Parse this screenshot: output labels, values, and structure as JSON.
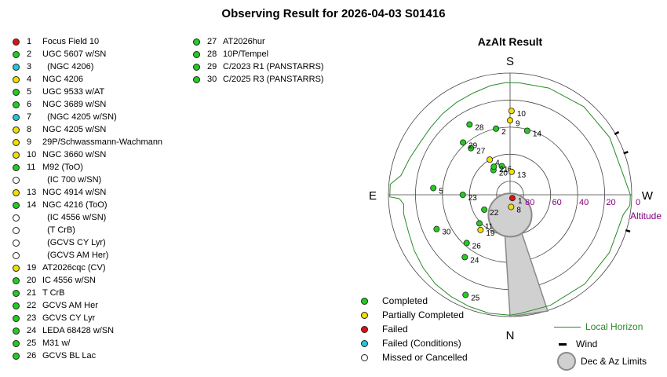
{
  "title": "Observing Result for 2026-04-03 S01416",
  "colors": {
    "completed": "#22cc22",
    "partial": "#f0e000",
    "failed": "#dd1111",
    "failed_conditions": "#22c8d8",
    "missed": "#ffffff",
    "horizon": "#2a8a2a",
    "altitude_label": "#800080"
  },
  "targets": [
    {
      "num": "1",
      "name": "Focus Field 10",
      "status": "failed"
    },
    {
      "num": "2",
      "name": "UGC 5607 w/SN",
      "status": "completed"
    },
    {
      "num": "3",
      "name": "  (NGC 4206)",
      "status": "failed_conditions"
    },
    {
      "num": "4",
      "name": "NGC 4206",
      "status": "partial"
    },
    {
      "num": "5",
      "name": "UGC 9533 w/AT",
      "status": "completed"
    },
    {
      "num": "6",
      "name": "NGC 3689 w/SN",
      "status": "completed"
    },
    {
      "num": "7",
      "name": "  (NGC 4205 w/SN)",
      "status": "failed_conditions"
    },
    {
      "num": "8",
      "name": "NGC 4205 w/SN",
      "status": "partial"
    },
    {
      "num": "9",
      "name": "29P/Schwassmann-Wachmann",
      "status": "partial"
    },
    {
      "num": "10",
      "name": "NGC 3660 w/SN",
      "status": "partial"
    },
    {
      "num": "11",
      "name": "M92 (ToO)",
      "status": "completed"
    },
    {
      "num": "",
      "name": "  (IC 700 w/SN)",
      "status": "missed"
    },
    {
      "num": "13",
      "name": "NGC 4914 w/SN",
      "status": "partial"
    },
    {
      "num": "14",
      "name": "NGC 4216 (ToO)",
      "status": "completed"
    },
    {
      "num": "",
      "name": "  (IC 4556 w/SN)",
      "status": "missed"
    },
    {
      "num": "",
      "name": "  (T CrB)",
      "status": "missed"
    },
    {
      "num": "",
      "name": "  (GCVS CY Lyr)",
      "status": "missed"
    },
    {
      "num": "",
      "name": "  (GCVS AM Her)",
      "status": "missed"
    },
    {
      "num": "19",
      "name": "AT2026cqc (CV)",
      "status": "partial"
    },
    {
      "num": "20",
      "name": "IC 4556 w/SN",
      "status": "completed"
    },
    {
      "num": "21",
      "name": "T CrB",
      "status": "completed"
    },
    {
      "num": "22",
      "name": "GCVS AM Her",
      "status": "completed"
    },
    {
      "num": "23",
      "name": "GCVS CY Lyr",
      "status": "completed"
    },
    {
      "num": "24",
      "name": "LEDA 68428 w/SN",
      "status": "completed"
    },
    {
      "num": "25",
      "name": "M31 w/",
      "status": "completed"
    },
    {
      "num": "26",
      "name": "GCVS BL Lac",
      "status": "completed"
    },
    {
      "num": "27",
      "name": "AT2026hur",
      "status": "completed"
    },
    {
      "num": "28",
      "name": "10P/Tempel",
      "status": "completed"
    },
    {
      "num": "29",
      "name": "C/2023 R1 (PANSTARRS)",
      "status": "completed"
    },
    {
      "num": "30",
      "name": "C/2025 R3 (PANSTARRS)",
      "status": "completed"
    }
  ],
  "plot": {
    "title": "AzAlt Result",
    "compass": {
      "N": "N",
      "S": "S",
      "E": "E",
      "W": "W"
    },
    "altitude_ticks": [
      "80",
      "60",
      "40",
      "20",
      "0"
    ],
    "altitude_label": "Altitude",
    "points": [
      {
        "label": "1",
        "status": "failed",
        "az": 325,
        "alt": 87
      },
      {
        "label": "2",
        "status": "completed",
        "az": 168,
        "alt": 40
      },
      {
        "label": "4",
        "status": "partial",
        "az": 150,
        "alt": 60
      },
      {
        "label": "5",
        "status": "completed",
        "az": 95,
        "alt": 33
      },
      {
        "label": "6",
        "status": "completed",
        "az": 164,
        "alt": 68
      },
      {
        "label": "8",
        "status": "partial",
        "az": 355,
        "alt": 81
      },
      {
        "label": "9",
        "status": "partial",
        "az": 180,
        "alt": 35
      },
      {
        "label": "10",
        "status": "partial",
        "az": 181,
        "alt": 28
      },
      {
        "label": "11",
        "status": "completed",
        "az": 47,
        "alt": 59
      },
      {
        "label": "13",
        "status": "partial",
        "az": 184,
        "alt": 73
      },
      {
        "label": "14",
        "status": "completed",
        "az": 195,
        "alt": 41
      },
      {
        "label": "19",
        "status": "partial",
        "az": 40,
        "alt": 56
      },
      {
        "label": "20",
        "status": "completed",
        "az": 146,
        "alt": 68
      },
      {
        "label": "21",
        "status": "completed",
        "az": 150,
        "alt": 66
      },
      {
        "label": "22",
        "status": "completed",
        "az": 60,
        "alt": 68
      },
      {
        "label": "23",
        "status": "completed",
        "az": 90,
        "alt": 55
      },
      {
        "label": "24",
        "status": "completed",
        "az": 36,
        "alt": 33
      },
      {
        "label": "25",
        "status": "completed",
        "az": 24,
        "alt": 9
      },
      {
        "label": "26",
        "status": "completed",
        "az": 42,
        "alt": 42
      },
      {
        "label": "27",
        "status": "completed",
        "az": 140,
        "alt": 45
      },
      {
        "label": "28",
        "status": "completed",
        "az": 150,
        "alt": 30
      },
      {
        "label": "29",
        "status": "completed",
        "az": 138,
        "alt": 38
      },
      {
        "label": "30",
        "status": "completed",
        "az": 65,
        "alt": 30
      }
    ],
    "limit_circle": {
      "az": 0,
      "alt": 75,
      "radius_deg": 16
    },
    "horizon_curve": [
      [
        0,
        1
      ],
      [
        10,
        1
      ],
      [
        20,
        2
      ],
      [
        30,
        3
      ],
      [
        40,
        4
      ],
      [
        50,
        6
      ],
      [
        60,
        8
      ],
      [
        70,
        10
      ],
      [
        80,
        10
      ],
      [
        85,
        11
      ],
      [
        88,
        8
      ],
      [
        89,
        1
      ],
      [
        95,
        1
      ],
      [
        100,
        8
      ],
      [
        110,
        11
      ],
      [
        120,
        13
      ],
      [
        130,
        13
      ],
      [
        140,
        12
      ],
      [
        150,
        11
      ],
      [
        160,
        10
      ],
      [
        170,
        8
      ],
      [
        178,
        7
      ],
      [
        185,
        7
      ],
      [
        200,
        6
      ],
      [
        220,
        5
      ],
      [
        240,
        5
      ],
      [
        260,
        5
      ],
      [
        270,
        1
      ],
      [
        275,
        1
      ],
      [
        280,
        5
      ],
      [
        300,
        5
      ],
      [
        320,
        4
      ],
      [
        340,
        3
      ],
      [
        355,
        2
      ],
      [
        360,
        1
      ]
    ],
    "wind_marks": [
      {
        "az": 250
      },
      {
        "az": 240
      },
      {
        "az": 287
      }
    ]
  },
  "legend": {
    "completed": "Completed",
    "partial": "Partially Completed",
    "failed": "Failed",
    "failed_conditions": "Failed (Conditions)",
    "missed": "Missed or Cancelled",
    "horizon": "Local Horizon",
    "wind": "Wind",
    "limits": "Dec & Az Limits"
  }
}
